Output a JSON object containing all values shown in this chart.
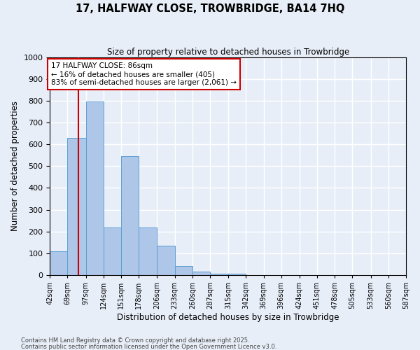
{
  "title1": "17, HALFWAY CLOSE, TROWBRIDGE, BA14 7HQ",
  "title2": "Size of property relative to detached houses in Trowbridge",
  "xlabel": "Distribution of detached houses by size in Trowbridge",
  "ylabel": "Number of detached properties",
  "bin_edges": [
    42,
    69,
    97,
    124,
    151,
    178,
    206,
    233,
    260,
    287,
    315,
    342,
    369,
    396,
    424,
    451,
    478,
    505,
    533,
    560,
    587
  ],
  "bar_heights": [
    110,
    630,
    795,
    220,
    545,
    220,
    135,
    42,
    15,
    7,
    8,
    0,
    0,
    0,
    0,
    0,
    0,
    0,
    0,
    0
  ],
  "bar_color": "#aec6e8",
  "bar_edge_color": "#5a9fd4",
  "red_line_x": 86,
  "ylim": [
    0,
    1000
  ],
  "yticks": [
    0,
    100,
    200,
    300,
    400,
    500,
    600,
    700,
    800,
    900,
    1000
  ],
  "annotation_text": "17 HALFWAY CLOSE: 86sqm\n← 16% of detached houses are smaller (405)\n83% of semi-detached houses are larger (2,061) →",
  "annotation_box_color": "#ffffff",
  "annotation_border_color": "#cc0000",
  "footnote1": "Contains HM Land Registry data © Crown copyright and database right 2025.",
  "footnote2": "Contains public sector information licensed under the Open Government Licence v3.0.",
  "background_color": "#e8eef8",
  "grid_color": "#ffffff"
}
